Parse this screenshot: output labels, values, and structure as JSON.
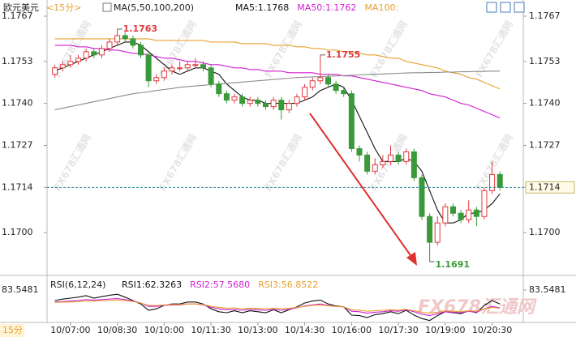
{
  "chart_data": {
    "type": "candlestick",
    "title": "欧元美元",
    "subtitle": "<15分>",
    "indicator": "MA(5,50,100,200)",
    "interval_label": "15分",
    "watermark": "FX678汇通网",
    "up_color": "#e0393e",
    "down_color": "#3a9a3a",
    "xlim": [
      -1,
      57.6
    ],
    "xticks": [
      {
        "value": 2,
        "label": "10/07:00"
      },
      {
        "value": 8,
        "label": "10/08:30"
      },
      {
        "value": 14,
        "label": "10/10:00"
      },
      {
        "value": 20,
        "label": "10/11:30"
      },
      {
        "value": 26,
        "label": "10/13:00"
      },
      {
        "value": 32,
        "label": "10/14:30"
      },
      {
        "value": 38,
        "label": "10/16:00"
      },
      {
        "value": 44,
        "label": "10/17:30"
      },
      {
        "value": 50,
        "label": "10/19:00"
      },
      {
        "value": 56,
        "label": "10/20:30"
      }
    ],
    "ylim": [
      1.1688,
      1.177
    ],
    "yticks": [
      1.1767,
      1.1753,
      {
        "value": 1.174,
        "label": "1.1740"
      },
      1.1727,
      1.1714,
      {
        "value": 1.17,
        "label": "1.1700"
      }
    ],
    "open": [
      1.1749,
      1.1751,
      1.1752,
      1.1753,
      1.1754,
      1.1756,
      1.1755,
      1.1757,
      1.1759,
      1.1761,
      1.176,
      1.1758,
      1.1755,
      1.1747,
      1.1748,
      1.175,
      1.1751,
      1.1751,
      1.1752,
      1.1752,
      1.1751,
      1.1746,
      1.1743,
      1.1741,
      1.1742,
      1.174,
      1.1741,
      1.174,
      1.1739,
      1.1741,
      1.1738,
      1.174,
      1.1742,
      1.1745,
      1.1747,
      1.1748,
      1.1746,
      1.1744,
      1.1743,
      1.1726,
      1.1724,
      1.1719,
      1.1721,
      1.1722,
      1.1724,
      1.1722,
      1.1725,
      1.1717,
      1.1705,
      1.1697,
      1.1703,
      1.1708,
      1.1706,
      1.1704,
      1.1707,
      1.1705,
      1.1713,
      1.1718
    ],
    "high": [
      1.1752,
      1.1753,
      1.1755,
      1.1755,
      1.1757,
      1.1757,
      1.1758,
      1.176,
      1.1763,
      1.1762,
      1.1761,
      1.1759,
      1.1756,
      1.1749,
      1.1751,
      1.1752,
      1.1753,
      1.1753,
      1.1754,
      1.1753,
      1.1752,
      1.1747,
      1.1744,
      1.1743,
      1.1743,
      1.1742,
      1.1742,
      1.1741,
      1.1742,
      1.1742,
      1.1741,
      1.1743,
      1.1746,
      1.1748,
      1.1755,
      1.1749,
      1.1747,
      1.1745,
      1.1744,
      1.1727,
      1.1725,
      1.1723,
      1.1724,
      1.1727,
      1.1725,
      1.1726,
      1.1726,
      1.1718,
      1.1706,
      1.1705,
      1.1709,
      1.1709,
      1.1707,
      1.171,
      1.1708,
      1.1714,
      1.1722,
      1.1719
    ],
    "low": [
      1.1748,
      1.175,
      1.1751,
      1.1752,
      1.1753,
      1.1754,
      1.1754,
      1.1756,
      1.1758,
      1.1759,
      1.1757,
      1.1754,
      1.1745,
      1.1746,
      1.1747,
      1.1749,
      1.175,
      1.175,
      1.1751,
      1.175,
      1.1745,
      1.1742,
      1.174,
      1.174,
      1.1739,
      1.1739,
      1.1739,
      1.1738,
      1.1738,
      1.1735,
      1.1737,
      1.1739,
      1.1741,
      1.1744,
      1.1746,
      1.1745,
      1.1743,
      1.1742,
      1.1725,
      1.1722,
      1.1718,
      1.1718,
      1.172,
      1.1721,
      1.1721,
      1.1721,
      1.1716,
      1.1704,
      1.1691,
      1.1696,
      1.1702,
      1.1705,
      1.1703,
      1.1703,
      1.1702,
      1.1704,
      1.1712,
      1.1713
    ],
    "close": [
      1.1751,
      1.1752,
      1.1753,
      1.1754,
      1.1756,
      1.1755,
      1.1757,
      1.1759,
      1.1761,
      1.176,
      1.1758,
      1.1755,
      1.1747,
      1.1748,
      1.175,
      1.1751,
      1.1751,
      1.1752,
      1.1752,
      1.1751,
      1.1746,
      1.1743,
      1.1741,
      1.1742,
      1.174,
      1.1741,
      1.174,
      1.1739,
      1.1741,
      1.1738,
      1.174,
      1.1742,
      1.1745,
      1.1747,
      1.1748,
      1.1746,
      1.1744,
      1.1743,
      1.1726,
      1.1724,
      1.1719,
      1.1721,
      1.1722,
      1.1724,
      1.1722,
      1.1725,
      1.1717,
      1.1705,
      1.1697,
      1.1703,
      1.1708,
      1.1706,
      1.1704,
      1.1707,
      1.1705,
      1.1713,
      1.1718,
      1.1714
    ],
    "series": [
      {
        "label": "MA5:1.1768",
        "color": "#111111",
        "values": [
          1.175,
          1.1751,
          1.1752,
          1.1753,
          1.1754,
          1.1755,
          1.1756,
          1.1757,
          1.1758,
          1.1759,
          1.1759,
          1.1758,
          1.1756,
          1.1754,
          1.1752,
          1.175,
          1.1749,
          1.175,
          1.1751,
          1.1751,
          1.175,
          1.1749,
          1.1746,
          1.1744,
          1.1742,
          1.1741,
          1.1741,
          1.174,
          1.174,
          1.174,
          1.174,
          1.174,
          1.1741,
          1.1742,
          1.1744,
          1.1745,
          1.1746,
          1.1745,
          1.1741,
          1.1736,
          1.1731,
          1.1726,
          1.1722,
          1.1722,
          1.1722,
          1.1723,
          1.1722,
          1.1719,
          1.1713,
          1.1707,
          1.1703,
          1.1703,
          1.1704,
          1.1706,
          1.1706,
          1.1707,
          1.1709,
          1.1712
        ]
      },
      {
        "label": "MA50:1.1762",
        "color": "#d21ed2",
        "values": [
          1.1758,
          1.1758,
          1.1758,
          1.17575,
          1.17575,
          1.1757,
          1.1757,
          1.17565,
          1.17565,
          1.1756,
          1.17555,
          1.17555,
          1.1755,
          1.17545,
          1.1754,
          1.1754,
          1.17535,
          1.1753,
          1.1753,
          1.17525,
          1.1752,
          1.1752,
          1.17515,
          1.1751,
          1.1751,
          1.17505,
          1.17505,
          1.175,
          1.175,
          1.175,
          1.17495,
          1.17495,
          1.17495,
          1.17495,
          1.1749,
          1.1749,
          1.1749,
          1.17485,
          1.17485,
          1.1748,
          1.17475,
          1.1747,
          1.17465,
          1.1746,
          1.17455,
          1.1745,
          1.17445,
          1.1744,
          1.1743,
          1.17425,
          1.1742,
          1.1741,
          1.174,
          1.17395,
          1.17385,
          1.17375,
          1.17365,
          1.17355
        ]
      },
      {
        "label": "MA100:",
        "color": "#e8a030",
        "values": [
          1.176,
          1.176,
          1.176,
          1.176,
          1.176,
          1.176,
          1.176,
          1.176,
          1.176,
          1.176,
          1.176,
          1.176,
          1.176,
          1.17595,
          1.17595,
          1.17595,
          1.17595,
          1.17595,
          1.17595,
          1.17595,
          1.1759,
          1.1759,
          1.1759,
          1.1759,
          1.17585,
          1.17585,
          1.17585,
          1.17585,
          1.1758,
          1.1758,
          1.1758,
          1.17575,
          1.17575,
          1.1757,
          1.1757,
          1.17565,
          1.17565,
          1.1756,
          1.1756,
          1.17555,
          1.1755,
          1.1755,
          1.17545,
          1.1754,
          1.1754,
          1.1753,
          1.17525,
          1.1752,
          1.17515,
          1.1751,
          1.175,
          1.17495,
          1.1749,
          1.1748,
          1.17475,
          1.17465,
          1.17455,
          1.17445
        ]
      },
      {
        "color": "#8c8c8c",
        "values": [
          1.1738,
          1.17385,
          1.1739,
          1.17395,
          1.174,
          1.17405,
          1.1741,
          1.17415,
          1.1742,
          1.17425,
          1.1743,
          1.17433,
          1.17436,
          1.1744,
          1.17443,
          1.17446,
          1.1745,
          1.17452,
          1.17454,
          1.17456,
          1.17458,
          1.1746,
          1.17462,
          1.17464,
          1.17466,
          1.17468,
          1.1747,
          1.17472,
          1.17474,
          1.17476,
          1.17478,
          1.1748,
          1.17481,
          1.17482,
          1.17483,
          1.17484,
          1.17485,
          1.17486,
          1.17487,
          1.17488,
          1.17489,
          1.1749,
          1.17491,
          1.17492,
          1.17493,
          1.17494,
          1.17495,
          1.17495,
          1.17496,
          1.17496,
          1.17497,
          1.17497,
          1.17498,
          1.17498,
          1.17499,
          1.17499,
          1.175,
          1.175
        ]
      }
    ],
    "annotations": [
      {
        "x": 8,
        "value": 1.1763
      },
      {
        "x": 34,
        "value": 1.1755
      },
      {
        "x": 48,
        "value": 1.1691
      }
    ],
    "last_price": {
      "value": 1.1714,
      "color": "#2a8a9a"
    },
    "rsi": {
      "title": "RSI(6,12,24)",
      "ylim": [
        10,
        90
      ],
      "yticks": [
        83.5481
      ],
      "series": [
        {
          "label": "RSI1:62.3263",
          "color": "#111111",
          "values": [
            55,
            58,
            60,
            62,
            65,
            60,
            63,
            66,
            68,
            62,
            55,
            48,
            35,
            38,
            45,
            48,
            48,
            52,
            52,
            48,
            38,
            32,
            30,
            34,
            30,
            34,
            32,
            30,
            36,
            30,
            36,
            42,
            50,
            54,
            56,
            48,
            44,
            42,
            25,
            24,
            20,
            26,
            28,
            32,
            28,
            35,
            25,
            18,
            14,
            24,
            32,
            30,
            28,
            34,
            30,
            45,
            55,
            48
          ]
        },
        {
          "label": "RSI2:57.5680",
          "color": "#d21ed2",
          "values": [
            52,
            53,
            54,
            55,
            57,
            56,
            57,
            58,
            59,
            57,
            54,
            50,
            43,
            43,
            45,
            46,
            46,
            48,
            48,
            46,
            41,
            38,
            36,
            37,
            35,
            37,
            36,
            35,
            37,
            35,
            37,
            40,
            44,
            46,
            48,
            45,
            43,
            42,
            33,
            32,
            29,
            31,
            32,
            34,
            33,
            36,
            32,
            27,
            24,
            28,
            32,
            31,
            30,
            33,
            31,
            38,
            43,
            40
          ]
        },
        {
          "label": "RSI3:56.8522",
          "color": "#e8a030",
          "values": [
            51,
            52,
            52,
            53,
            54,
            54,
            55,
            55,
            56,
            55,
            53,
            50,
            45,
            45,
            46,
            47,
            47,
            48,
            48,
            47,
            43,
            41,
            39,
            40,
            38,
            39,
            39,
            38,
            39,
            38,
            39,
            41,
            43,
            45,
            46,
            44,
            43,
            42,
            36,
            35,
            33,
            34,
            35,
            36,
            35,
            37,
            34,
            31,
            29,
            31,
            34,
            33,
            32,
            34,
            33,
            38,
            41,
            39
          ]
        }
      ]
    }
  }
}
